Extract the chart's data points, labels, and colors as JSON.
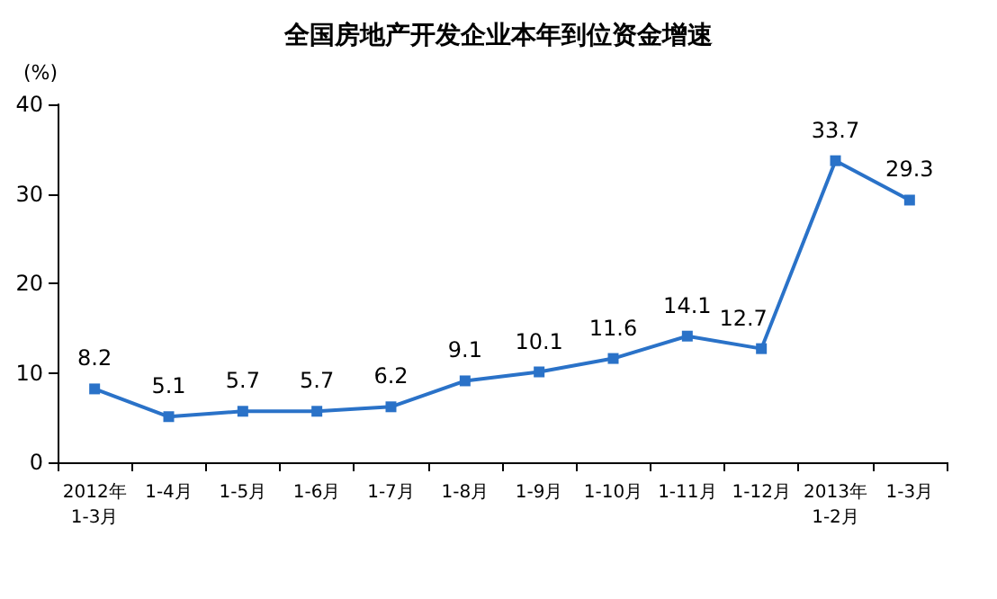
{
  "chart_data": {
    "type": "line",
    "title": "全国房地产开发企业本年到位资金增速",
    "ylabel": "(%)",
    "categories": [
      "2012年\n1-3月",
      "1-4月",
      "1-5月",
      "1-6月",
      "1-7月",
      "1-8月",
      "1-9月",
      "1-10月",
      "1-11月",
      "1-12月",
      "2013年\n1-2月",
      "1-3月"
    ],
    "series": [
      {
        "color": "#2a72c8",
        "values": [
          8.2,
          5.1,
          5.7,
          5.7,
          6.2,
          9.1,
          10.1,
          11.6,
          14.1,
          12.7,
          33.7,
          29.3
        ]
      }
    ],
    "ylim": [
      0,
      40
    ],
    "yticks": [
      0,
      10,
      20,
      30,
      40
    ],
    "grid": false,
    "marker": "square",
    "line_style": "solid",
    "data_labels": true
  }
}
